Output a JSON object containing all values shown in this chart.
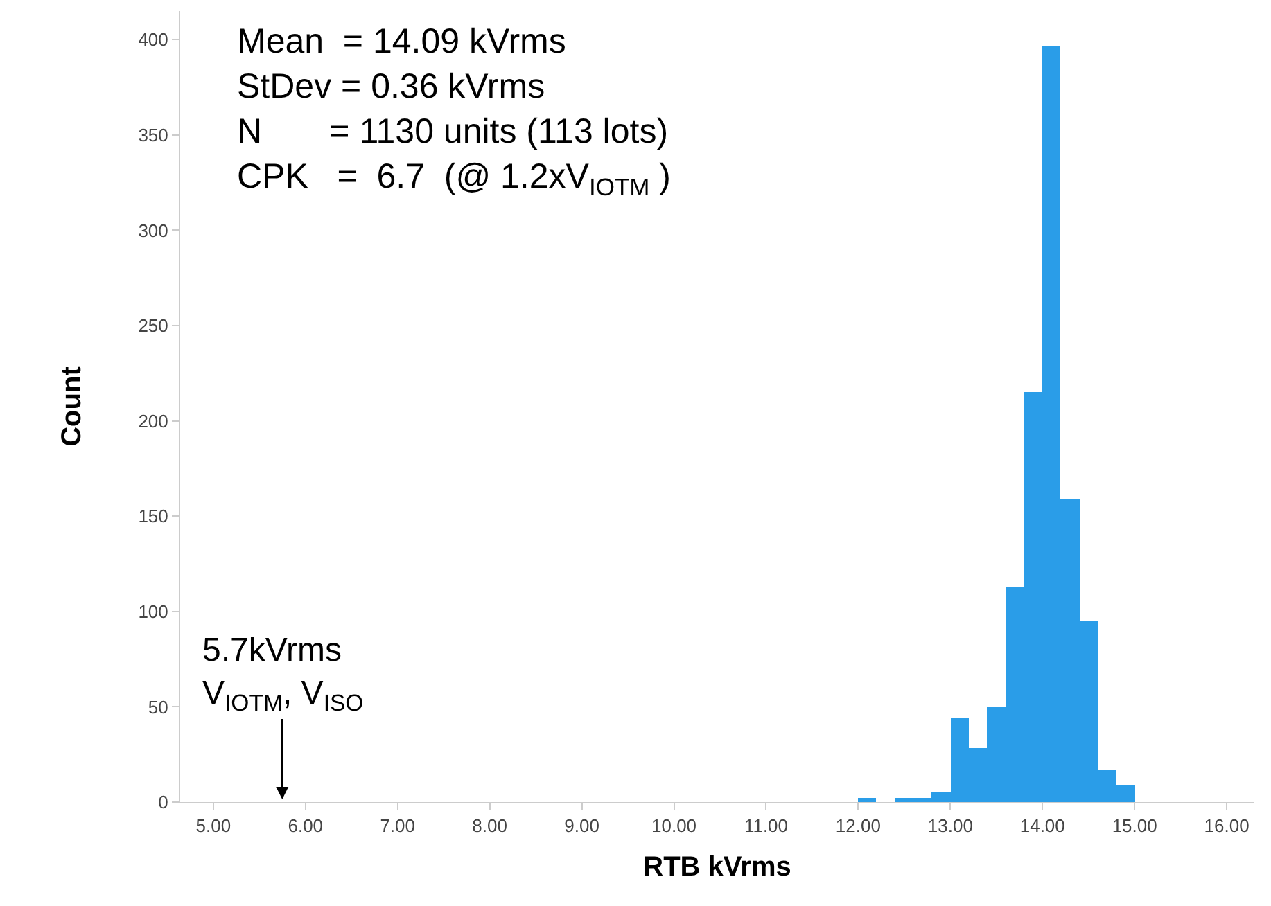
{
  "chart_data": {
    "type": "histogram",
    "xlabel": "RTB kVrms",
    "ylabel": "Count",
    "bins": [
      12.0,
      12.2,
      12.4,
      12.6,
      12.8,
      13.0,
      13.2,
      13.4,
      13.6,
      13.8,
      14.0,
      14.2,
      14.4,
      14.6,
      14.8,
      15.0
    ],
    "values": [
      2,
      0,
      2,
      2,
      5,
      44,
      28,
      50,
      113,
      215,
      397,
      159,
      95,
      17,
      9
    ],
    "color": "#2a9de8",
    "xlim": [
      4.64,
      16.3
    ],
    "xticks": [
      {
        "value": 5,
        "label": "5.00"
      },
      {
        "value": 6,
        "label": "6.00"
      },
      {
        "value": 7,
        "label": "7.00"
      },
      {
        "value": 8,
        "label": "8.00"
      },
      {
        "value": 9,
        "label": "9.00"
      },
      {
        "value": 10,
        "label": "10.00"
      },
      {
        "value": 11,
        "label": "11.00"
      },
      {
        "value": 12,
        "label": "12.00"
      },
      {
        "value": 13,
        "label": "13.00"
      },
      {
        "value": 14,
        "label": "14.00"
      },
      {
        "value": 15,
        "label": "15.00"
      },
      {
        "value": 16,
        "label": "16.00"
      }
    ],
    "ylim": [
      0,
      415
    ],
    "yticks": [
      0,
      50,
      100,
      150,
      200,
      250,
      300,
      350,
      400
    ],
    "annotations": [
      "Mean  = 14.09 kVrms\nStDev = 0.36 kVrms\nN       = 1130 units (113 lots)\nCPK   =  6.7  (@ 1.2xV$_{IOTM}$ )",
      "5.7kVrms\nV$_{IOTM}$, V$_{ISO}$"
    ]
  }
}
